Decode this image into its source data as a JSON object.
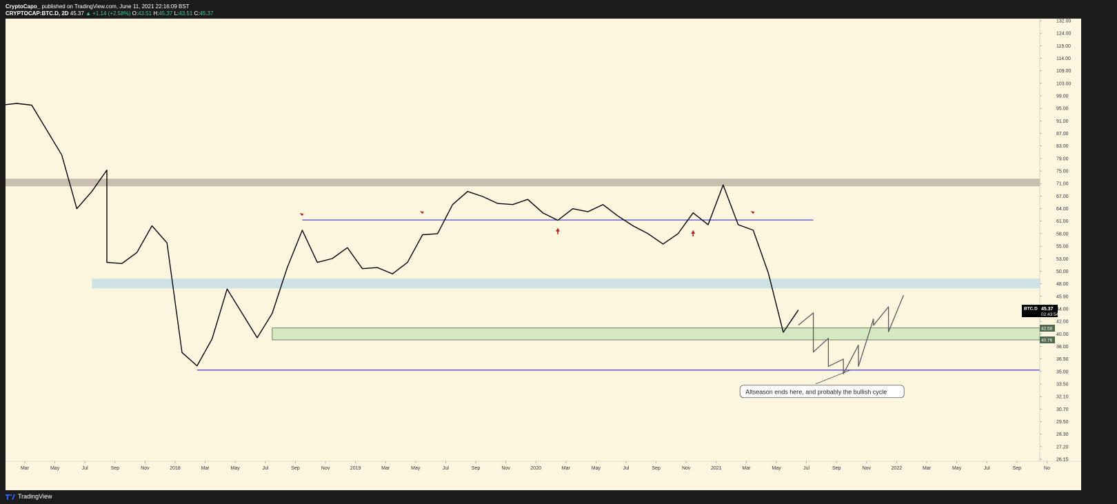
{
  "header": {
    "publisher": "CryptoCapo_",
    "published_text": "published on TradingView.com, June 11, 2021 22:16:09 BST",
    "symbol": "CRYPTOCAP:BTC.D, 2D",
    "last": "45.37",
    "change": "▲ +1.14 (+2.58%)",
    "ohlc_o_label": "O:",
    "ohlc_o": "43.51",
    "ohlc_h_label": "H:",
    "ohlc_h": "45.37",
    "ohlc_l_label": "L:",
    "ohlc_l": "43.51",
    "ohlc_c_label": "C:",
    "ohlc_c": "45.37"
  },
  "footer": {
    "brand": "TradingView",
    "logo_icon": "tradingview-logo-icon"
  },
  "colors": {
    "background": "#fdf6df",
    "price": "#000000",
    "resistance_zone": "#c9bfae",
    "support_zone_blue": "#cfe3e6",
    "support_zone_green": "#d4e8c2",
    "trend_line": "#3d34c8",
    "marker": "#b71c1c",
    "projection": "#5a5a5a"
  },
  "chart_data": {
    "type": "line",
    "symbol": "BTC.D",
    "interval": "2D",
    "x_ticks": [
      "Mar",
      "May",
      "Jul",
      "Sep",
      "Nov",
      "2018",
      "Mar",
      "May",
      "Jul",
      "Sep",
      "Nov",
      "2019",
      "Mar",
      "May",
      "Jul",
      "Sep",
      "Nov",
      "2020",
      "Mar",
      "May",
      "Jul",
      "Sep",
      "Nov",
      "2021",
      "Mar",
      "May",
      "Jul",
      "Sep",
      "Nov",
      "2022",
      "Mar",
      "May",
      "Jul",
      "Sep",
      "No"
    ],
    "y_ticks": [
      "132.00",
      "124.00",
      "119.00",
      "114.00",
      "109.00",
      "103.00",
      "99.00",
      "95.00",
      "91.00",
      "87.00",
      "83.00",
      "79.00",
      "75.00",
      "71.00",
      "67.00",
      "64.00",
      "61.00",
      "58.00",
      "55.00",
      "53.00",
      "50.00",
      "48.00",
      "45.90",
      "44.00",
      "42.00",
      "40.00",
      "38.00",
      "36.50",
      "35.00",
      "33.50",
      "32.10",
      "30.70",
      "29.50",
      "28.30",
      "27.20",
      "26.15"
    ],
    "ylim": [
      26.15,
      132
    ],
    "scale": "log",
    "price_labels": [
      {
        "name": "BTC.D",
        "value": "45.37",
        "sub": "02:43:54"
      },
      {
        "name": "zone-top",
        "value": "42.58"
      },
      {
        "name": "zone-bottom",
        "value": "40.76"
      }
    ],
    "zones": [
      {
        "name": "resistance",
        "low": 71.5,
        "high": 73.5,
        "x_start": "2017-01",
        "x_end": "2022-12"
      },
      {
        "name": "support-blue",
        "low": 49.2,
        "high": 51.0,
        "x_start": "2017-07",
        "x_end": "2022-12"
      },
      {
        "name": "support-green",
        "low": 40.76,
        "high": 42.58,
        "x_start": "2018-07",
        "x_end": "2022-12"
      }
    ],
    "lines": [
      {
        "name": "trend-64",
        "value": 63.2,
        "x_start": "2018-09",
        "x_end": "2021-07"
      },
      {
        "name": "trend-36.5",
        "value": 36.5,
        "x_start": "2018-02",
        "x_end": "2022-12"
      }
    ],
    "markers": [
      {
        "x": "2018-09",
        "y": 63.5,
        "dir": "down"
      },
      {
        "x": "2019-05",
        "y": 64.0,
        "dir": "down"
      },
      {
        "x": "2020-02",
        "y": 62.0,
        "dir": "up"
      },
      {
        "x": "2020-11",
        "y": 61.5,
        "dir": "up"
      },
      {
        "x": "2021-03",
        "y": 64.0,
        "dir": "down"
      }
    ],
    "series": [
      {
        "name": "",
        "points": [
          [
            "2017-01",
            96
          ],
          [
            "2017-02",
            97
          ],
          [
            "2017-03",
            96
          ],
          [
            "2017-04",
            88
          ],
          [
            "2017-05",
            80
          ],
          [
            "2017-06",
            66
          ],
          [
            "2017-07",
            70
          ],
          [
            "2017-08",
            76
          ],
          [
            "2017-08",
            54
          ],
          [
            "2017-09",
            54
          ],
          [
            "2017-10",
            56
          ],
          [
            "2017-11",
            62
          ],
          [
            "2017-12",
            58
          ],
          [
            "2018-01",
            39
          ],
          [
            "2018-02",
            37
          ],
          [
            "2018-03",
            41
          ],
          [
            "2018-04",
            49
          ],
          [
            "2018-05",
            45
          ],
          [
            "2018-06",
            41
          ],
          [
            "2018-07",
            45
          ],
          [
            "2018-08",
            53
          ],
          [
            "2018-09",
            61
          ],
          [
            "2018-10",
            54
          ],
          [
            "2018-11",
            55
          ],
          [
            "2018-12",
            57
          ],
          [
            "2019-01",
            53
          ],
          [
            "2019-02",
            53
          ],
          [
            "2019-03",
            52
          ],
          [
            "2019-04",
            54
          ],
          [
            "2019-05",
            60
          ],
          [
            "2019-06",
            60
          ],
          [
            "2019-07",
            67
          ],
          [
            "2019-08",
            70
          ],
          [
            "2019-09",
            69
          ],
          [
            "2019-10",
            67
          ],
          [
            "2019-11",
            67
          ],
          [
            "2019-12",
            68
          ],
          [
            "2020-01",
            65
          ],
          [
            "2020-02",
            63
          ],
          [
            "2020-03",
            66
          ],
          [
            "2020-04",
            65
          ],
          [
            "2020-05",
            67
          ],
          [
            "2020-06",
            64
          ],
          [
            "2020-07",
            62
          ],
          [
            "2020-08",
            60
          ],
          [
            "2020-09",
            58
          ],
          [
            "2020-10",
            60
          ],
          [
            "2020-11",
            65
          ],
          [
            "2020-12",
            62
          ],
          [
            "2021-01",
            72
          ],
          [
            "2021-02",
            62
          ],
          [
            "2021-03",
            61
          ],
          [
            "2021-04",
            52
          ],
          [
            "2021-05",
            42
          ],
          [
            "2021-06",
            45.37
          ]
        ]
      },
      {
        "name": "",
        "points": [
          [
            "2021-06",
            43
          ],
          [
            "2021-07",
            45
          ],
          [
            "2021-07",
            39
          ],
          [
            "2021-08",
            41
          ],
          [
            "2021-08",
            37
          ],
          [
            "2021-09",
            38
          ],
          [
            "2021-09",
            36
          ],
          [
            "2021-10",
            40
          ],
          [
            "2021-10",
            37
          ],
          [
            "2021-11",
            44
          ],
          [
            "2021-11",
            43
          ],
          [
            "2021-12",
            46
          ],
          [
            "2021-12",
            42
          ],
          [
            "2022-01",
            48
          ]
        ]
      }
    ],
    "annotation": {
      "text": "Altseason ends here, and probably the bullish cycle",
      "x": "2021-09",
      "y": 36.5
    }
  }
}
